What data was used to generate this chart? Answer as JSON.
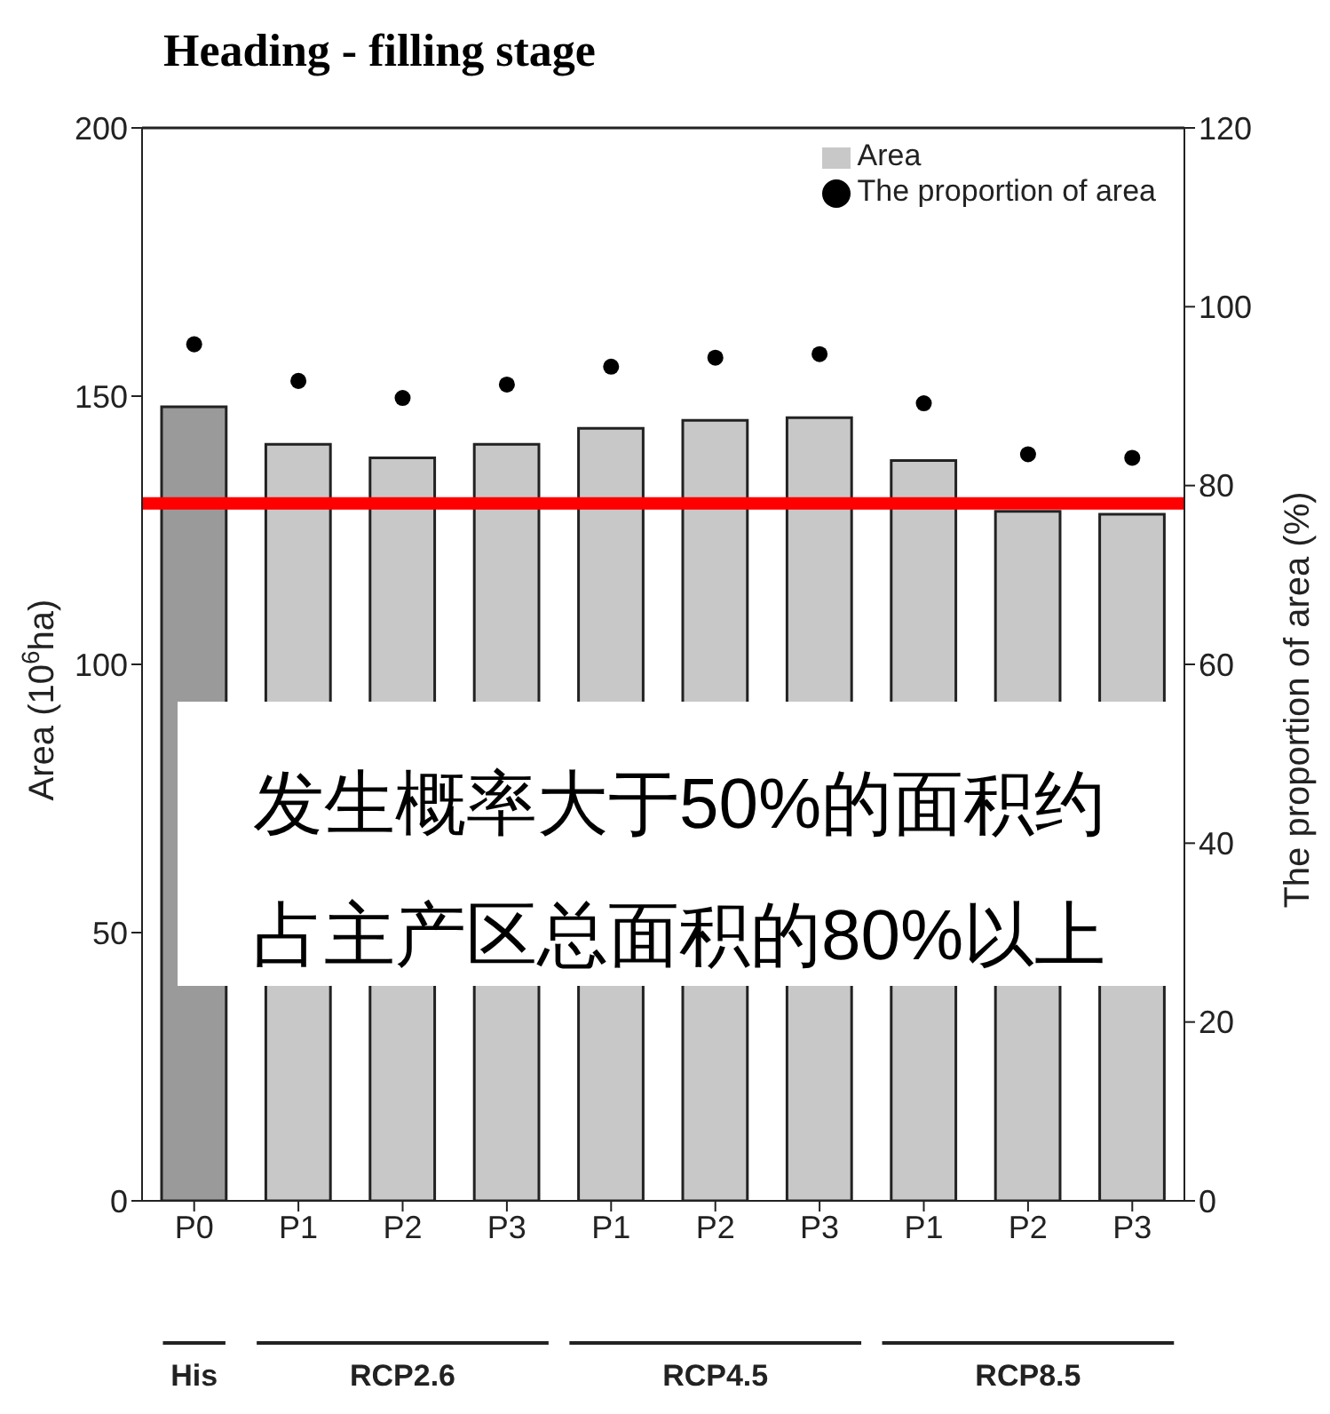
{
  "chart_data": {
    "type": "bar",
    "title": "Heading - filling stage",
    "ylabel": "Area (10$^{6}$ha)",
    "y2label": "The proportion of area (%)",
    "categories": [
      "P0",
      "P1",
      "P2",
      "P3",
      "P1",
      "P2",
      "P3",
      "P1",
      "P2",
      "P3"
    ],
    "series": [
      {
        "name": "Area",
        "color": "#c8c8c8",
        "colors": [
          "#9a9a9a",
          "#c8c8c8",
          "#c8c8c8",
          "#c8c8c8",
          "#c8c8c8",
          "#c8c8c8",
          "#c8c8c8",
          "#c8c8c8",
          "#c8c8c8",
          "#c8c8c8"
        ],
        "values": [
          148,
          141,
          138.5,
          141,
          144,
          145.5,
          146,
          138,
          128.5,
          128
        ]
      },
      {
        "name": "The proportion of area",
        "type": "scatter",
        "axis": "y2",
        "color": "#000000",
        "values": [
          95.8,
          91.7,
          89.8,
          91.3,
          93.3,
          94.3,
          94.7,
          89.2,
          83.5,
          83.1
        ]
      }
    ],
    "ylim": [
      0,
      200
    ],
    "yticks": [
      0,
      50,
      100,
      150,
      200
    ],
    "y2lim": [
      0,
      120
    ],
    "y2ticks": [
      0,
      20,
      40,
      60,
      80,
      100,
      120
    ],
    "ref_lines": [
      {
        "axis": "y2",
        "value": 78,
        "color": "#ff0000"
      }
    ],
    "annotations": [
      "His",
      "RCP2.6",
      "RCP4.5",
      "RCP8.5",
      "发生概率大于50%的面积约",
      "占主产区总面积的80%以上"
    ],
    "legend": "top right",
    "marker": "circle"
  }
}
